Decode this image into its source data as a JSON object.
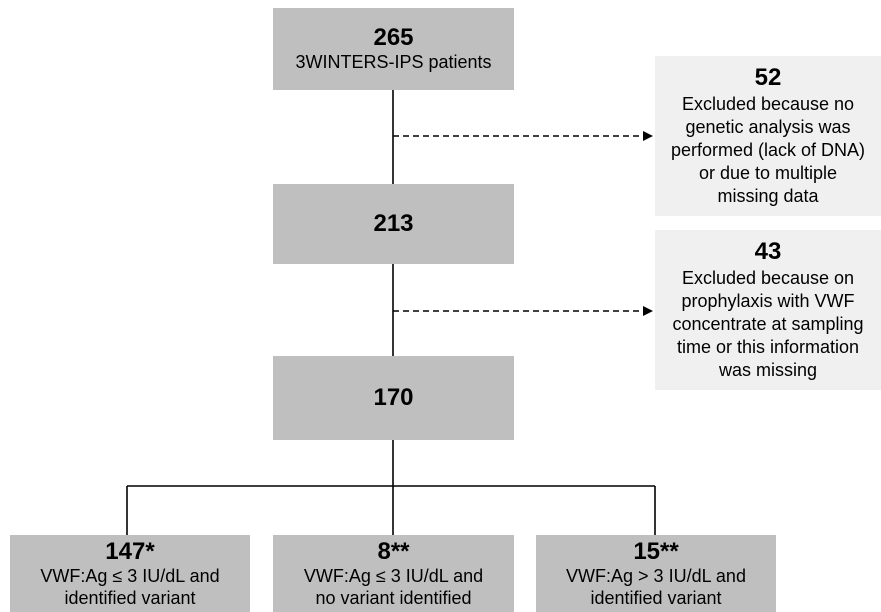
{
  "boxes": {
    "start": {
      "count": "265",
      "label": "3WINTERS-IPS patients"
    },
    "step2": {
      "count": "213"
    },
    "step3": {
      "count": "170"
    },
    "excl1": {
      "count": "52",
      "lines": [
        "Excluded because no",
        "genetic analysis was",
        "performed (lack of DNA)",
        "or due to multiple",
        "missing data"
      ]
    },
    "excl2": {
      "count": "43",
      "lines": [
        "Excluded because on",
        "prophylaxis with VWF",
        "concentrate at sampling",
        "time or this information",
        "was missing"
      ]
    },
    "out1": {
      "count": "147*",
      "lines": [
        "VWF:Ag ≤ 3 IU/dL and",
        "identified variant"
      ]
    },
    "out2": {
      "count": "8**",
      "lines": [
        "VWF:Ag ≤ 3 IU/dL and",
        "no variant identified"
      ]
    },
    "out3": {
      "count": "15**",
      "lines": [
        "VWF:Ag > 3 IU/dL and",
        "identified variant"
      ]
    }
  },
  "colors": {
    "main_box": "#bfbfbf",
    "exclusion_box": "#f0f0f0",
    "line": "#000000"
  }
}
